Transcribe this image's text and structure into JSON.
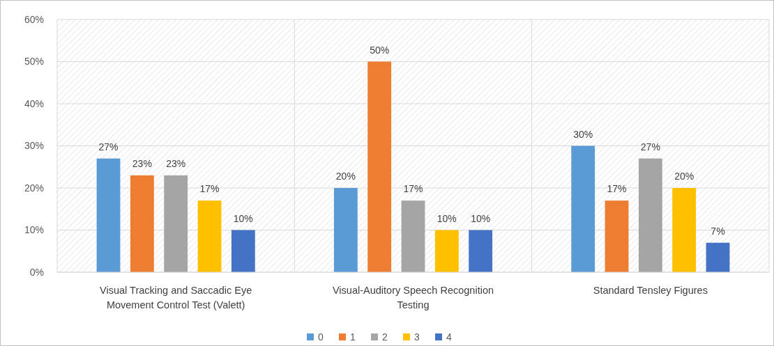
{
  "chart_data": {
    "type": "bar",
    "categories": [
      "Visual Tracking and Saccadic Eye Movement Control Test (Valett)",
      "Visual-Auditory Speech Recognition Testing",
      "Standard Tensley Figures"
    ],
    "series": [
      {
        "name": "0",
        "color": "#5b9bd5",
        "values": [
          27,
          20,
          30
        ]
      },
      {
        "name": "1",
        "color": "#ed7d31",
        "values": [
          23,
          50,
          17
        ]
      },
      {
        "name": "2",
        "color": "#a5a5a5",
        "values": [
          23,
          17,
          27
        ]
      },
      {
        "name": "3",
        "color": "#ffc000",
        "values": [
          17,
          10,
          20
        ]
      },
      {
        "name": "4",
        "color": "#4472c4",
        "values": [
          10,
          10,
          7
        ]
      }
    ],
    "ylim": [
      0,
      60
    ],
    "yticks": [
      {
        "value": 0,
        "label": "0%"
      },
      {
        "value": 10,
        "label": "10%"
      },
      {
        "value": 20,
        "label": "20%"
      },
      {
        "value": 30,
        "label": "30%"
      },
      {
        "value": 40,
        "label": "40%"
      },
      {
        "value": 50,
        "label": "50%"
      },
      {
        "value": 60,
        "label": "60%"
      }
    ],
    "value_labels": [
      [
        "27%",
        "20%",
        "30%"
      ],
      [
        "23%",
        "50%",
        "17%"
      ],
      [
        "23%",
        "17%",
        "27%"
      ],
      [
        "17%",
        "10%",
        "20%"
      ],
      [
        "10%",
        "10%",
        "7%"
      ]
    ],
    "grid": true,
    "legend": "bottom"
  }
}
